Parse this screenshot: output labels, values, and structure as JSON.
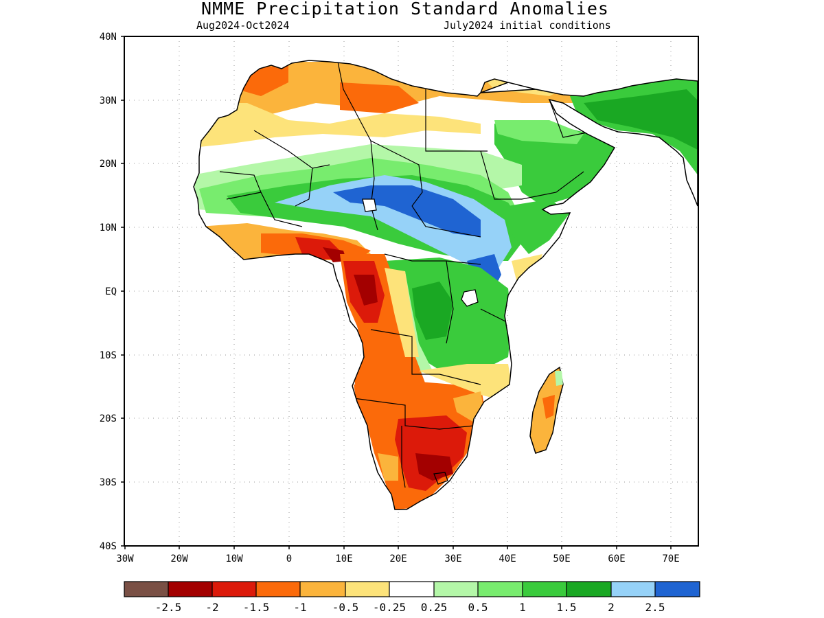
{
  "header": {
    "title": "NMME Precipitation Standard Anomalies",
    "period": "Aug2024-Oct2024",
    "initial_conditions": "July2024 initial conditions"
  },
  "axes": {
    "lat_labels": [
      "40N",
      "30N",
      "20N",
      "10N",
      "EQ",
      "10S",
      "20S",
      "30S",
      "40S"
    ],
    "lon_labels": [
      "30W",
      "20W",
      "10W",
      "0",
      "10E",
      "20E",
      "30E",
      "40E",
      "50E",
      "60E",
      "70E"
    ]
  },
  "colorbar": {
    "colors": [
      "#7a5045",
      "#a30000",
      "#dc1a0a",
      "#fb6a0a",
      "#fbb43c",
      "#fde37a",
      "#ffffff",
      "#b4f7a8",
      "#78ec6e",
      "#3acb3c",
      "#1aa823",
      "#96d2f8",
      "#1f64d2"
    ],
    "labels": [
      "-2.5",
      "-2",
      "-1.5",
      "-1",
      "-0.5",
      "-0.25",
      "0.25",
      "0.5",
      "1",
      "1.5",
      "2",
      "2.5"
    ]
  }
}
